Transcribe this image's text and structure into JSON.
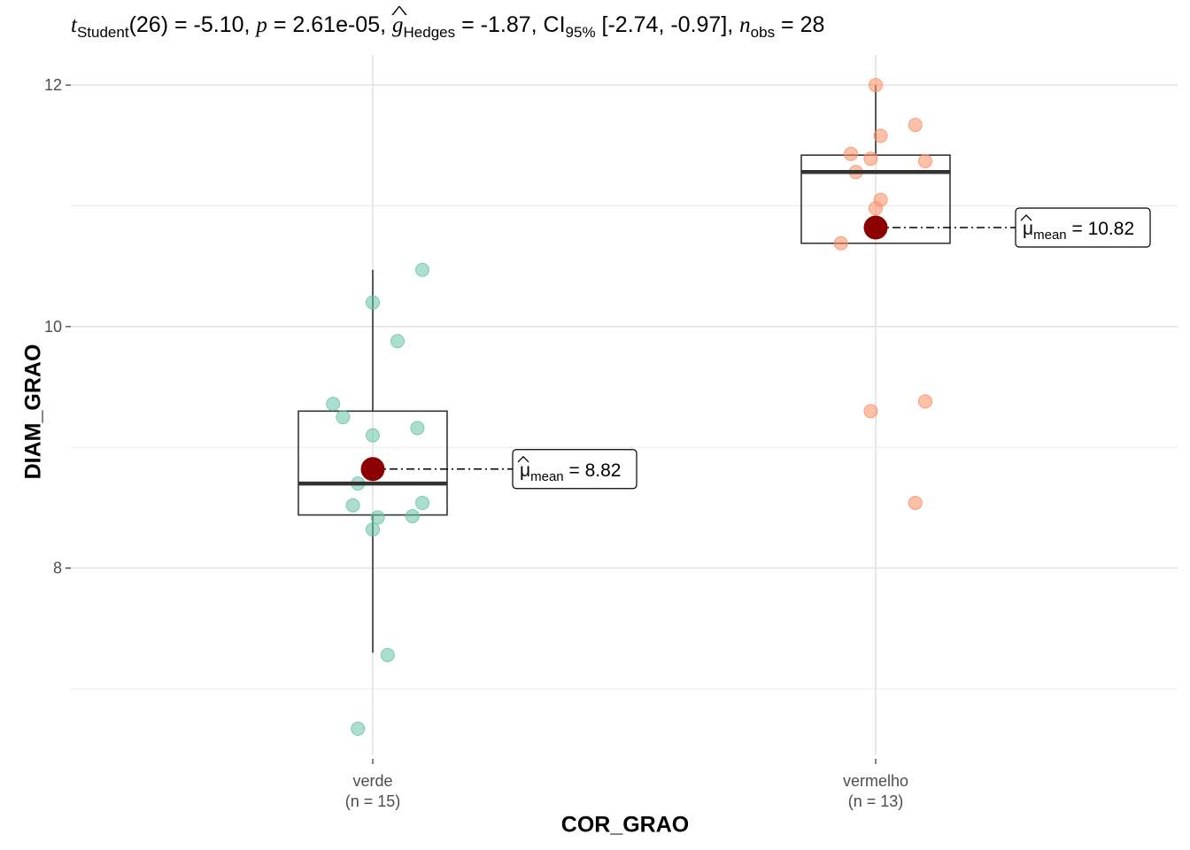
{
  "subtitle": {
    "t_symbol": "t",
    "t_sub": "Student",
    "t_df": "(26)",
    "eq": " = ",
    "t_value": "-5.10",
    "p_symbol": "p",
    "p_value": "2.61e-05",
    "g_symbol": "g",
    "g_sub": "Hedges",
    "g_value": "-1.87",
    "ci_symbol": "CI",
    "ci_sub": "95%",
    "ci_value": "[-2.74, -0.97]",
    "n_symbol": "n",
    "n_sub": "obs",
    "n_value": "28"
  },
  "chart_data": {
    "type": "boxplot",
    "xlabel": "COR_GRAO",
    "ylabel": "DIAM_GRAO",
    "ylim": [
      6.45,
      12.25
    ],
    "y_ticks": [
      8,
      10,
      12
    ],
    "y_minor_ticks": [
      7,
      9,
      11
    ],
    "grid": true,
    "categories": [
      {
        "name": "verde",
        "n_label": "(n = 15)",
        "color": "#66C2A5",
        "box": {
          "min": 7.3,
          "q1": 8.44,
          "median": 8.7,
          "q3": 9.3,
          "max": 10.47
        },
        "mean": 8.82,
        "mean_label": "8.82",
        "points": [
          {
            "x": -0.03,
            "y": 6.67
          },
          {
            "x": 0.03,
            "y": 7.28
          },
          {
            "x": 0.0,
            "y": 8.32
          },
          {
            "x": 0.01,
            "y": 8.42
          },
          {
            "x": 0.08,
            "y": 8.43
          },
          {
            "x": -0.04,
            "y": 8.52
          },
          {
            "x": 0.1,
            "y": 8.54
          },
          {
            "x": -0.03,
            "y": 8.7
          },
          {
            "x": 0.0,
            "y": 9.1
          },
          {
            "x": 0.09,
            "y": 9.16
          },
          {
            "x": -0.06,
            "y": 9.25
          },
          {
            "x": -0.08,
            "y": 9.36
          },
          {
            "x": 0.05,
            "y": 9.88
          },
          {
            "x": 0.0,
            "y": 10.2
          },
          {
            "x": 0.1,
            "y": 10.47
          }
        ]
      },
      {
        "name": "vermelho",
        "n_label": "(n = 13)",
        "color": "#FC8D62",
        "box": {
          "min": 10.69,
          "q1": 10.69,
          "median": 11.28,
          "q3": 11.42,
          "max": 12.0
        },
        "mean": 10.82,
        "mean_label": "10.82",
        "points": [
          {
            "x": 0.08,
            "y": 8.54
          },
          {
            "x": -0.01,
            "y": 9.3
          },
          {
            "x": 0.1,
            "y": 9.38
          },
          {
            "x": -0.07,
            "y": 10.69
          },
          {
            "x": 0.0,
            "y": 10.98
          },
          {
            "x": 0.01,
            "y": 11.05
          },
          {
            "x": -0.04,
            "y": 11.28
          },
          {
            "x": -0.01,
            "y": 11.39
          },
          {
            "x": 0.1,
            "y": 11.37
          },
          {
            "x": -0.05,
            "y": 11.43
          },
          {
            "x": 0.01,
            "y": 11.58
          },
          {
            "x": 0.08,
            "y": 11.67
          },
          {
            "x": 0.0,
            "y": 12.0
          }
        ]
      }
    ],
    "mean_label_prefix": "μ",
    "mean_label_sub": "mean",
    "mean_color": "#8B0000"
  }
}
